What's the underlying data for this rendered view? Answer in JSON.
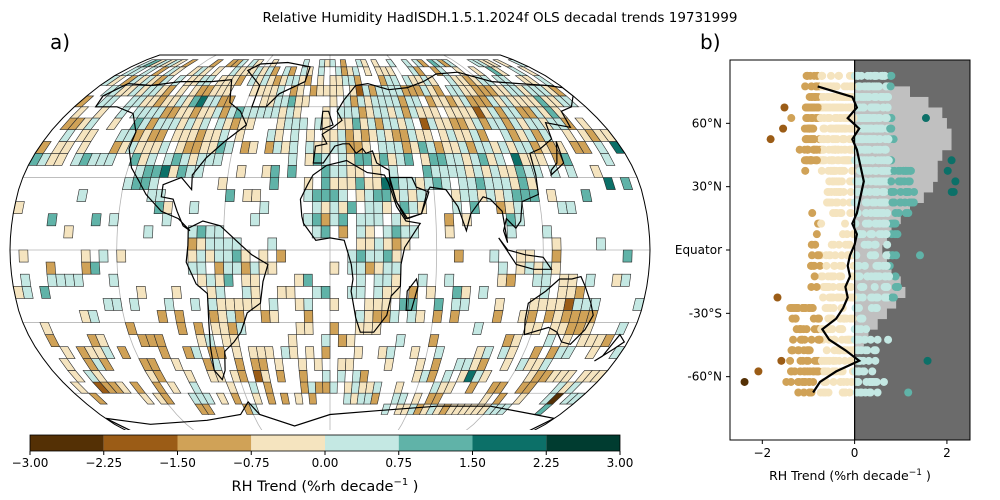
{
  "title": "Relative Humidity HadISDH.1.5.1.2024f OLS decadal trends 19731999",
  "panels": {
    "a": "a)",
    "b": "b)"
  },
  "colors": {
    "bins": [
      "#543005",
      "#9b5c16",
      "#d0a257",
      "#f5e4bf",
      "#c4e8e3",
      "#60b3a8",
      "#0c7068",
      "#003c30"
    ],
    "land": "#000000",
    "graticule": "#b4b4b4",
    "shade_light": "#c0c0c0",
    "shade_dark": "#6b6b6b"
  },
  "chart_data": [
    {
      "type": "heatmap",
      "projection": "Robinson",
      "colorbar": {
        "label": "RH Trend (%rh decade",
        "label_exponent": "−1",
        "label_suffix": " )",
        "boundaries": [
          -3.0,
          -2.25,
          -1.5,
          -0.75,
          0.0,
          0.75,
          1.5,
          2.25,
          3.0
        ],
        "tick_labels": [
          "−3.00",
          "−2.25",
          "−1.50",
          "−0.75",
          "0.00",
          "0.75",
          "1.50",
          "2.25",
          "3.00"
        ]
      }
    },
    {
      "type": "scatter",
      "xlabel": "RH Trend (%rh decade",
      "xlabel_exponent": "−1",
      "xlabel_suffix": " )",
      "xlim": [
        -2.7,
        2.5
      ],
      "ylim": [
        -90,
        90
      ],
      "x_ticks": [
        -2,
        0,
        2
      ],
      "x_tick_labels": [
        "−2",
        "0",
        "2"
      ],
      "y_ticks": [
        60,
        30,
        0,
        -30,
        -60
      ],
      "y_tick_labels": [
        "60°N",
        "30°N",
        "Equator",
        "-30°S",
        "-60°N"
      ],
      "zonal_mean": {
        "lat": [
          77.5,
          72.5,
          67.5,
          62.5,
          57.5,
          52.5,
          47.5,
          42.5,
          37.5,
          32.5,
          27.5,
          22.5,
          17.5,
          12.5,
          7.5,
          2.5,
          -2.5,
          -7.5,
          -12.5,
          -17.5,
          -22.5,
          -27.5,
          -32.5,
          -37.5,
          -42.5,
          -47.5,
          -52.5,
          -57.5,
          -62.5,
          -67.5
        ],
        "value": [
          -0.8,
          -0.05,
          0.05,
          -0.15,
          0.1,
          -0.05,
          0.05,
          0.1,
          0.15,
          0.2,
          0.15,
          0.1,
          0.05,
          -0.05,
          0.05,
          0.0,
          -0.1,
          -0.15,
          -0.1,
          -0.2,
          -0.15,
          -0.25,
          -0.4,
          -0.7,
          -0.55,
          -0.2,
          0.1,
          -0.4,
          -0.75,
          -0.9
        ]
      }
    }
  ]
}
